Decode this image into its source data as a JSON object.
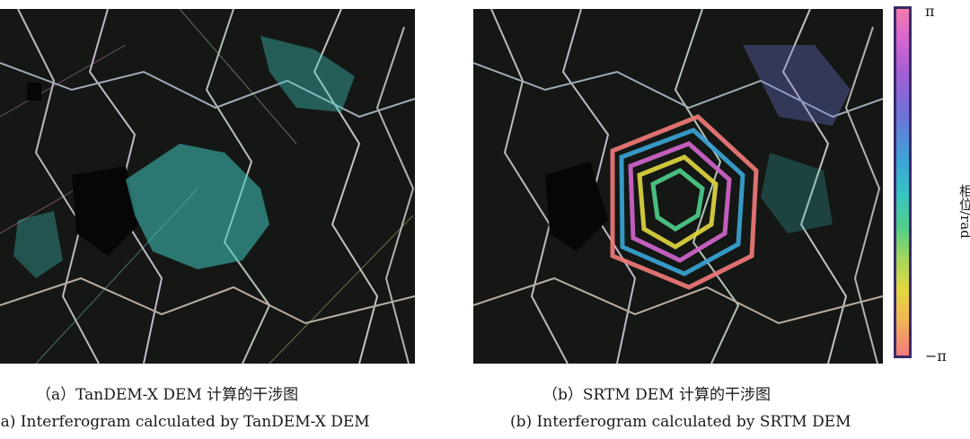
{
  "figures": [
    {
      "id": "a",
      "caption_zh": "（a）TanDEM-X DEM 计算的干涉图",
      "caption_en": "(a) Interferogram calculated by TanDEM-X DEM",
      "dominant_color": "#3fc7c0"
    },
    {
      "id": "b",
      "caption_zh": "（b）SRTM DEM 计算的干涉图",
      "caption_en": "(b) Interferogram calculated by SRTM DEM",
      "dominant_color": "#b56ad0"
    }
  ],
  "colorbar": {
    "top_label": "π",
    "bottom_label": "−π",
    "axis_label": "相位/rad",
    "colors": [
      "#f47cad",
      "#a15fd6",
      "#3aa6d8",
      "#4fcf8c",
      "#e3d93f",
      "#f37a7a"
    ]
  }
}
